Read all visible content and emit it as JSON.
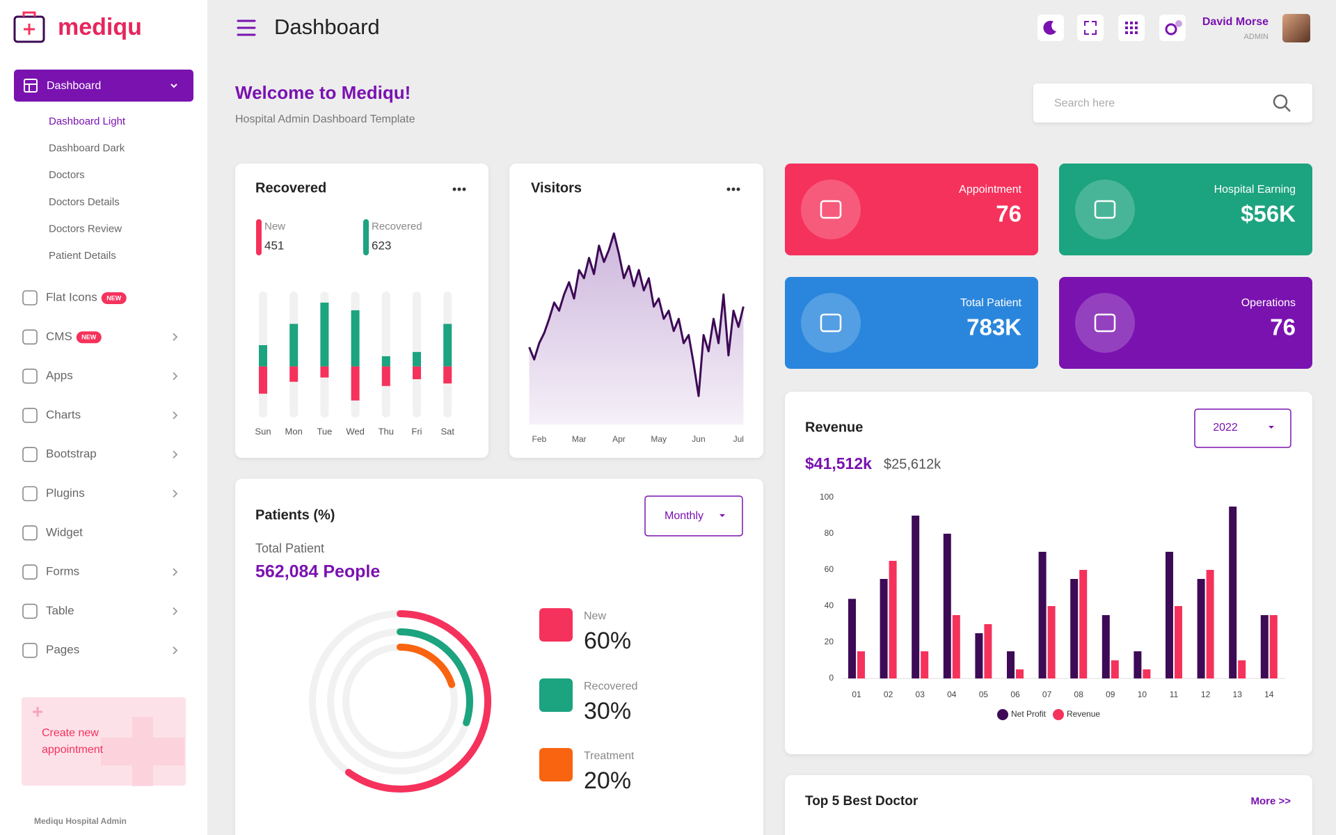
{
  "brand": "mediqu",
  "sidebar": {
    "active": "Dashboard",
    "submenu": [
      "Dashboard Light",
      "Dashboard Dark",
      "Doctors",
      "Doctors Details",
      "Doctors Review",
      "Patient Details"
    ],
    "menu": [
      {
        "label": "Flat Icons",
        "badge": "NEW"
      },
      {
        "label": "CMS",
        "badge": "NEW"
      },
      {
        "label": "Apps"
      },
      {
        "label": "Charts"
      },
      {
        "label": "Bootstrap"
      },
      {
        "label": "Plugins"
      },
      {
        "label": "Widget"
      },
      {
        "label": "Forms"
      },
      {
        "label": "Table"
      },
      {
        "label": "Pages"
      }
    ],
    "promo": [
      "Create new",
      "appointment"
    ],
    "footer": "Mediqu Hospital Admin"
  },
  "header": {
    "title": "Dashboard",
    "user": "David Morse",
    "role": "ADMIN"
  },
  "welcome": {
    "title": "Welcome to Mediqu!",
    "subtitle": "Hospital Admin Dashboard Template"
  },
  "search": "Search here",
  "stats": [
    {
      "label": "Appointment",
      "value": "76",
      "color": "#f5325c"
    },
    {
      "label": "Hospital Earning",
      "value": "$56K",
      "color": "#1ca37f"
    },
    {
      "label": "Total Patient",
      "value": "783K",
      "color": "#2a86dc"
    },
    {
      "label": "Operations",
      "value": "76",
      "color": "#7a12b0"
    }
  ],
  "doctors": {
    "title": "Top 5 Best Doctor",
    "more": "More >>"
  },
  "chart_data": [
    {
      "type": "diverging",
      "title": "Recovered",
      "categories": [
        "Sun",
        "Mon",
        "Tue",
        "Wed",
        "Thu",
        "Fri",
        "Sat"
      ],
      "series": [
        {
          "name": "New",
          "total": 451,
          "color": "#f5325c",
          "values": [
            32,
            18,
            13,
            40,
            23,
            15,
            20
          ]
        },
        {
          "name": "Recovered",
          "total": 623,
          "color": "#1ca37f",
          "values": [
            25,
            50,
            75,
            66,
            12,
            17,
            50
          ]
        }
      ],
      "ylim": [
        -60,
        88
      ]
    },
    {
      "type": "area",
      "title": "Visitors",
      "color": "#3d0a55",
      "x": [
        1.75,
        1.875,
        2,
        2.125,
        2.25,
        2.375,
        2.5,
        2.625,
        2.75,
        2.875,
        3,
        3.125,
        3.25,
        3.375,
        3.5,
        3.625,
        3.75,
        3.875,
        4,
        4.125,
        4.25,
        4.375,
        4.5,
        4.625,
        4.75,
        4.875,
        5,
        5.125,
        5.25,
        5.375,
        5.5,
        5.625,
        5.75,
        5.875,
        6,
        6.125,
        6.25,
        6.375,
        6.5,
        6.625,
        6.75,
        6.875,
        7,
        7.125
      ],
      "values": [
        38,
        32,
        40,
        45,
        52,
        60,
        56,
        64,
        70,
        62,
        76,
        72,
        82,
        74,
        88,
        80,
        86,
        94,
        84,
        72,
        78,
        68,
        76,
        66,
        72,
        58,
        62,
        52,
        56,
        46,
        52,
        40,
        44,
        30,
        14,
        44,
        36,
        52,
        40,
        64,
        34,
        56,
        48,
        58
      ],
      "xlim": [
        1.74,
        7.17
      ],
      "xticks": [
        {
          "value": 2,
          "label": "Feb"
        },
        {
          "value": 3,
          "label": "Mar"
        },
        {
          "value": 4,
          "label": "Apr"
        },
        {
          "value": 5,
          "label": "May"
        },
        {
          "value": 6,
          "label": "Jun"
        },
        {
          "value": 7,
          "label": "Jul"
        }
      ],
      "ylim": [
        0,
        100
      ]
    },
    {
      "type": "radial",
      "title": "Patients (%)",
      "dropdown": "Monthly",
      "subtitle": "Total Patient",
      "total": "562,084 People",
      "categories": [
        "New",
        "Recovered",
        "Treatment"
      ],
      "values": [
        60,
        30,
        20
      ],
      "value_labels": [
        "60%",
        "30%",
        "20%"
      ],
      "colors": [
        "#f5325c",
        "#1ca37f",
        "#f8640f"
      ]
    },
    {
      "type": "bar",
      "title": "Revenue",
      "dropdown": "2022",
      "summary": [
        "$41,512k",
        "$25,612k"
      ],
      "categories": [
        "01",
        "02",
        "03",
        "04",
        "05",
        "06",
        "07",
        "08",
        "09",
        "10",
        "11",
        "12",
        "13",
        "14"
      ],
      "series": [
        {
          "name": "Net Profit",
          "color": "#3d0a55",
          "values": [
            44,
            55,
            90,
            80,
            25,
            15,
            70,
            55,
            35,
            15,
            70,
            55,
            95,
            35
          ]
        },
        {
          "name": "Revenue",
          "color": "#f5325c",
          "values": [
            15,
            65,
            15,
            35,
            30,
            5,
            40,
            60,
            10,
            5,
            40,
            60,
            10,
            35
          ]
        }
      ],
      "ylim": [
        0,
        100
      ],
      "yticks": [
        0,
        20,
        40,
        60,
        80,
        100
      ]
    }
  ]
}
